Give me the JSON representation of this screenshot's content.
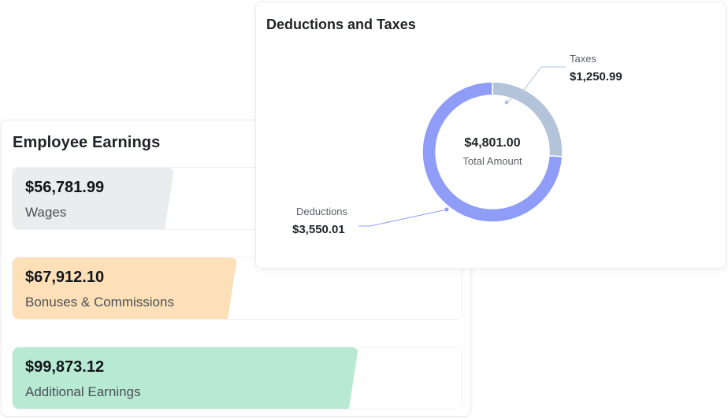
{
  "earnings": {
    "title": "Employee Earnings",
    "items": [
      {
        "amount": "$56,781.99",
        "label": "Wages",
        "color": "#ebecee",
        "fill_fraction": 0.36
      },
      {
        "amount": "$67,912.10",
        "label": "Bonuses & Commissions",
        "color": "#fde0b8",
        "fill_fraction": 0.5
      },
      {
        "amount": "$99,873.12",
        "label": "Additional Earnings",
        "color": "#b8ead3",
        "fill_fraction": 0.77
      }
    ]
  },
  "deductions": {
    "title": "Deductions and Taxes",
    "center_amount": "$4,801.00",
    "center_label": "Total Amount",
    "taxes": {
      "name": "Taxes",
      "value": "$1,250.99",
      "color": "#b3c3d9"
    },
    "deductions": {
      "name": "Deductions",
      "value": "$3,550.01",
      "color": "#8f9cf8"
    }
  },
  "chart_data": {
    "type": "pie",
    "title": "Deductions and Taxes",
    "categories": [
      "Taxes",
      "Deductions"
    ],
    "values": [
      1250.99,
      3550.01
    ],
    "total": 4801.0
  }
}
